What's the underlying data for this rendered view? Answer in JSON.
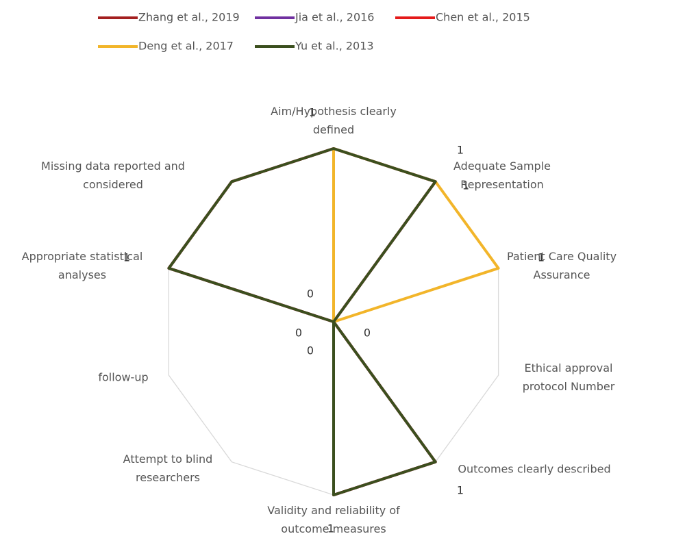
{
  "chart_data": {
    "type": "radar",
    "categories": [
      "Aim/Hypothesis clearly defined",
      "Adequate Sample Representation",
      "Patient Care Quality Assurance",
      "Ethical approval protocol Number",
      "Outcomes clearly described",
      "Validity and reliability of outcome measures",
      "Attempt to blind researchers",
      "follow-up",
      "Appropriate statistical analyses",
      "Missing data reported and considered"
    ],
    "series": [
      {
        "name": "Zhang et al., 2019",
        "color": "#a31f1f",
        "values": [
          1,
          1,
          0,
          0,
          1,
          1,
          0,
          0,
          1,
          1
        ]
      },
      {
        "name": "Jia et al., 2016",
        "color": "#7030a0",
        "values": [
          1,
          1,
          0,
          0,
          1,
          1,
          0,
          0,
          1,
          1
        ]
      },
      {
        "name": "Chen et al., 2015",
        "color": "#e41a1a",
        "values": [
          1,
          1,
          0,
          0,
          1,
          1,
          0,
          0,
          1,
          1
        ]
      },
      {
        "name": "Deng et al., 2017",
        "color": "#f2b52a",
        "values": [
          1,
          1,
          1,
          0,
          0,
          0,
          0,
          0,
          0,
          0
        ]
      },
      {
        "name": "Yu et al., 2013",
        "color": "#3b4f1e",
        "values": [
          1,
          1,
          0,
          0,
          1,
          1,
          0,
          0,
          1,
          1
        ]
      }
    ],
    "ylim": [
      0,
      1
    ],
    "yticks": [
      0,
      1
    ],
    "grid": true
  }
}
